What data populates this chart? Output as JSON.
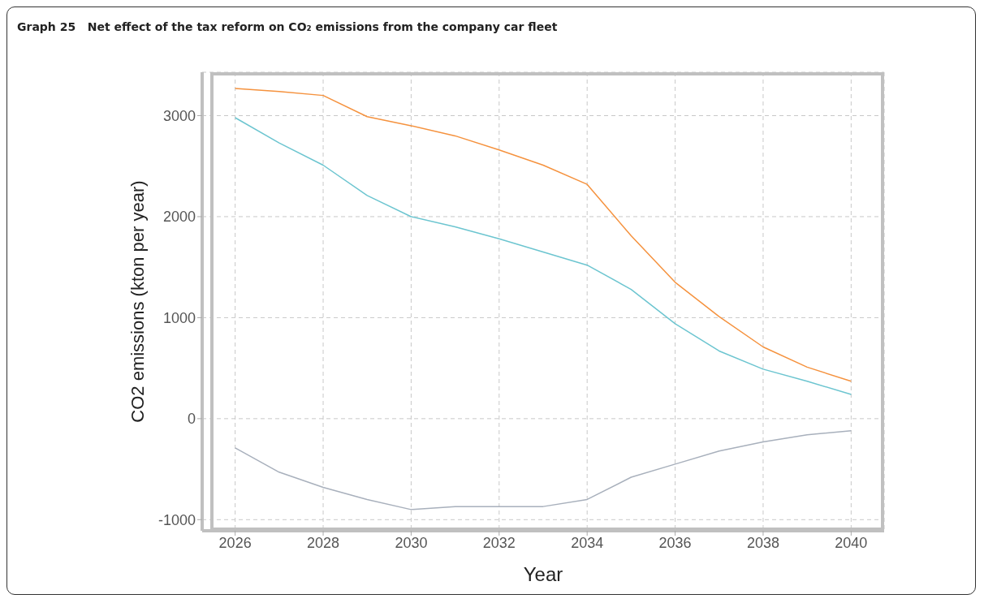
{
  "chart_data": {
    "type": "line",
    "title": "Graph 25   Net effect of the tax reform on CO₂ emissions from the company car fleet",
    "xlabel": "Year",
    "ylabel": "CO2 emissions (kton per year)",
    "x": [
      2026,
      2027,
      2028,
      2029,
      2030,
      2031,
      2032,
      2033,
      2034,
      2035,
      2036,
      2037,
      2038,
      2039,
      2040
    ],
    "series": [
      {
        "color": "#f5923e",
        "values": [
          3270,
          3240,
          3200,
          2990,
          2900,
          2800,
          2660,
          2510,
          2320,
          1810,
          1350,
          1010,
          710,
          510,
          370
        ]
      },
      {
        "color": "#6cc5d0",
        "values": [
          2980,
          2730,
          2510,
          2210,
          2000,
          1900,
          1780,
          1650,
          1520,
          1280,
          940,
          670,
          490,
          370,
          240
        ]
      },
      {
        "color": "#a8b0bc",
        "values": [
          -290,
          -530,
          -680,
          -800,
          -900,
          -870,
          -870,
          -870,
          -800,
          -580,
          -450,
          -320,
          -230,
          -160,
          -120
        ]
      }
    ],
    "xlim": [
      2025.25,
      2040.75
    ],
    "xticks": [
      2026,
      2028,
      2030,
      2032,
      2034,
      2036,
      2038,
      2040
    ],
    "ylim": [
      -1110,
      3430
    ],
    "yticks": [
      -1000,
      0,
      1000,
      2000,
      3000
    ],
    "grid": true,
    "legend": false,
    "marker": "none",
    "line_style": "solid"
  }
}
